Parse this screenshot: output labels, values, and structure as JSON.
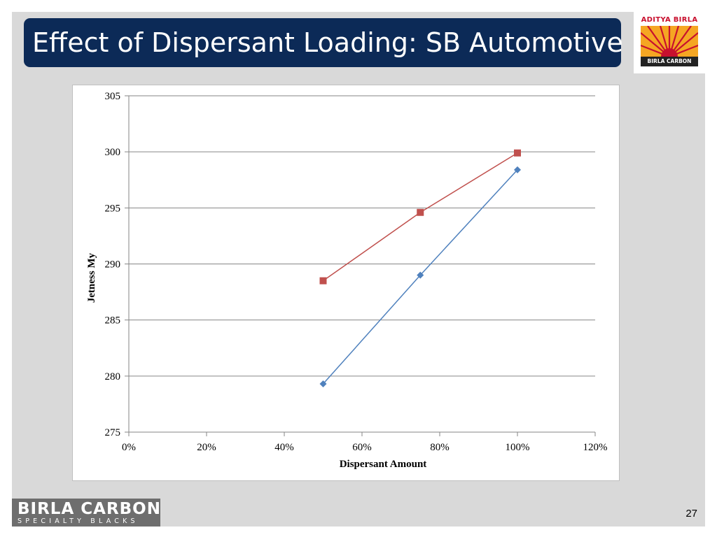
{
  "slide": {
    "title": "Effect of Dispersant Loading: SB Automotive",
    "page_number": "27"
  },
  "branding": {
    "logo_top_text": "ADITYA BIRLA",
    "logo_bottom_text": "BIRLA CARBON",
    "footer_main": "BIRLA CARBON",
    "footer_sub": "SPECIALTY BLACKS",
    "colors": {
      "title_bar": "#0c2a57",
      "logo_red": "#c8102e",
      "logo_gold": "#f5a623"
    }
  },
  "chart_data": {
    "type": "line",
    "xlabel": "Dispersant Amount",
    "ylabel": "Jetness My",
    "xlim": [
      0,
      1.2
    ],
    "ylim": [
      275,
      305
    ],
    "x_ticks": [
      0,
      0.2,
      0.4,
      0.6,
      0.8,
      1.0,
      1.2
    ],
    "x_tick_labels": [
      "0%",
      "20%",
      "40%",
      "60%",
      "80%",
      "100%",
      "120%"
    ],
    "y_ticks": [
      275,
      280,
      285,
      290,
      295,
      300,
      305
    ],
    "y_tick_labels": [
      "275",
      "280",
      "285",
      "290",
      "295",
      "300",
      "305"
    ],
    "grid": "horizontal",
    "legend": "none",
    "series": [
      {
        "x": [
          0.5,
          0.75,
          1.0
        ],
        "y": [
          279.3,
          289.0,
          298.4
        ],
        "color": "#4f81bd",
        "marker": "diamond"
      },
      {
        "x": [
          0.5,
          0.75,
          1.0
        ],
        "y": [
          288.5,
          294.6,
          299.9
        ],
        "color": "#c0504d",
        "marker": "square"
      }
    ]
  }
}
